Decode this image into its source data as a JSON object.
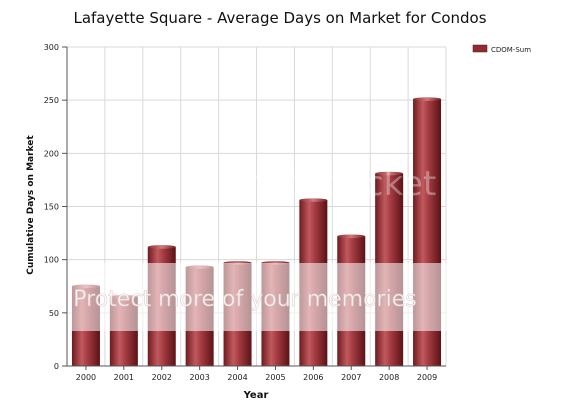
{
  "chart_data": {
    "type": "bar",
    "title": "Lafayette Square - Average Days on Market for Condos",
    "xlabel": "Year",
    "ylabel": "Cumulative Days on Market",
    "categories": [
      "2000",
      "2001",
      "2002",
      "2003",
      "2004",
      "2005",
      "2006",
      "2007",
      "2008",
      "2009"
    ],
    "series": [
      {
        "name": "CDOM-Sum",
        "values": [
          75,
          65,
          112,
          93,
          97,
          97,
          156,
          122,
          181,
          251
        ]
      }
    ],
    "ylim": [
      0,
      300
    ],
    "yticks": [
      0,
      50,
      100,
      150,
      200,
      250,
      300
    ],
    "grid": true,
    "legend": "top-right",
    "colors": {
      "bar_dark": "#7a1e22",
      "bar_mid": "#b24a4f",
      "bar_light": "#d98a8e",
      "grid": "#d9d9d9",
      "axis": "#555555"
    }
  },
  "watermark": {
    "brand": "photobucket",
    "tagline": "Protect more of your memories"
  }
}
